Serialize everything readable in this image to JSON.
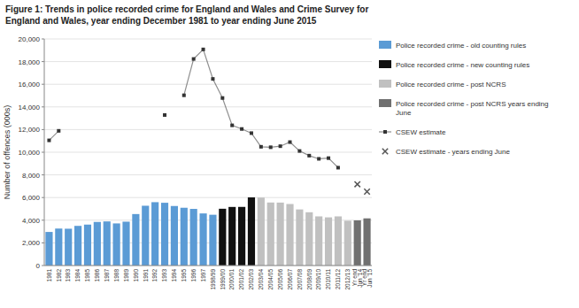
{
  "chart_data": {
    "type": "bar",
    "title": "Figure 1: Trends in police recorded crime for England and Wales and Crime Survey for\nEngland and Wales, year ending December 1981 to year ending June 2015",
    "y_label": "Number of offences (000s)",
    "categories": [
      "1981",
      "1982",
      "1983",
      "1984",
      "1985",
      "1986",
      "1987",
      "1988",
      "1989",
      "1990",
      "1991",
      "1992",
      "1993",
      "1994",
      "1995",
      "1996",
      "1997",
      "1998/99",
      "1999/00",
      "2000/01",
      "2001/02",
      "2002/03",
      "2003/04",
      "2004/05",
      "2005/06",
      "2006/07",
      "2007/08",
      "2008/09",
      "2009/10",
      "2010/11",
      "2011/12",
      "2012/13",
      "Yr end\nJun '14",
      "Yr end\nJun '15"
    ],
    "stacked": true,
    "series": [
      {
        "name": "Police recorded crime - old counting rules",
        "type": "bar",
        "color": "#5b9bd5",
        "values": [
          2963,
          3263,
          3247,
          3499,
          3612,
          3847,
          3892,
          3716,
          3870,
          4543,
          5276,
          5591,
          5539,
          5254,
          5099,
          4998,
          4598,
          4481,
          null,
          null,
          null,
          null,
          null,
          null,
          null,
          null,
          null,
          null,
          null,
          null,
          null,
          null,
          null,
          null
        ]
      },
      {
        "name": "Police recorded crime - new counting rules",
        "type": "bar",
        "color": "#111111",
        "values": [
          null,
          null,
          null,
          null,
          null,
          null,
          null,
          null,
          null,
          null,
          null,
          null,
          null,
          null,
          null,
          null,
          null,
          null,
          5011,
          5170,
          5174,
          6013,
          null,
          null,
          null,
          null,
          null,
          null,
          null,
          null,
          null,
          null,
          null,
          null
        ]
      },
      {
        "name": "Police recorded crime - post NCRS",
        "type": "bar",
        "color": "#c0c0c0",
        "values": [
          null,
          null,
          null,
          null,
          null,
          null,
          null,
          null,
          null,
          null,
          null,
          null,
          null,
          null,
          null,
          null,
          null,
          null,
          null,
          null,
          null,
          null,
          5998,
          5563,
          5556,
          5430,
          4952,
          4702,
          4338,
          4251,
          4338,
          3957,
          null,
          null
        ]
      },
      {
        "name": "Police recorded crime - post NCRS years ending\nJune",
        "type": "bar",
        "color": "#707070",
        "values": [
          null,
          null,
          null,
          null,
          null,
          null,
          null,
          null,
          null,
          null,
          null,
          null,
          null,
          null,
          null,
          null,
          null,
          null,
          null,
          null,
          null,
          null,
          null,
          null,
          null,
          null,
          null,
          null,
          null,
          null,
          null,
          null,
          3985,
          4163
        ]
      },
      {
        "name": "CSEW estimate",
        "type": "line",
        "marker": "square",
        "color": "#333333",
        "values": [
          11048,
          11888,
          null,
          null,
          null,
          null,
          null,
          null,
          null,
          null,
          null,
          null,
          13285,
          null,
          15026,
          18232,
          19077,
          16471,
          14786,
          12374,
          12053,
          11686,
          10482,
          10440,
          10533,
          10895,
          10109,
          9699,
          9417,
          9480,
          8637,
          null,
          null,
          null
        ]
      },
      {
        "name": "CSEW estimate - years ending June",
        "type": "scatter",
        "marker": "x",
        "color": "#555555",
        "values": [
          null,
          null,
          null,
          null,
          null,
          null,
          null,
          null,
          null,
          null,
          null,
          null,
          null,
          null,
          null,
          null,
          null,
          null,
          null,
          null,
          null,
          null,
          null,
          null,
          null,
          null,
          null,
          null,
          null,
          null,
          null,
          null,
          7172,
          6521
        ]
      }
    ],
    "ylim": [
      0,
      20000
    ],
    "yticks": [
      0,
      {
        "value": 2000,
        "label": "2,000"
      },
      {
        "value": 4000,
        "label": "4,000"
      },
      {
        "value": 6000,
        "label": "6,000"
      },
      {
        "value": 8000,
        "label": "8,000"
      },
      {
        "value": 10000,
        "label": "10,000"
      },
      {
        "value": 12000,
        "label": "12,000"
      },
      {
        "value": 14000,
        "label": "14,000"
      },
      {
        "value": 16000,
        "label": "16,000"
      },
      {
        "value": 18000,
        "label": "18,000"
      },
      {
        "value": 20000,
        "label": "20,000"
      }
    ],
    "grid": true,
    "legend": "right"
  }
}
